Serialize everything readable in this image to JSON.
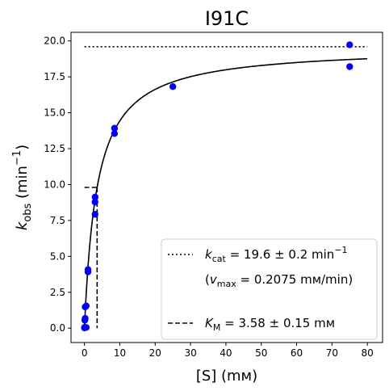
{
  "chart_data": {
    "type": "scatter",
    "title": "I91C",
    "xlabel": "[S] (mм)",
    "ylabel_main": "k",
    "ylabel_sub": "obs",
    "ylabel_unit_open": " (min",
    "ylabel_unit_exp": "−1",
    "ylabel_unit_close": ")",
    "xlim": [
      -3.8,
      84.3
    ],
    "ylim": [
      -1.0,
      20.6
    ],
    "xticks": [
      0,
      10,
      20,
      30,
      40,
      50,
      60,
      70,
      80
    ],
    "yticks": [
      0.0,
      2.5,
      5.0,
      7.5,
      10.0,
      12.5,
      15.0,
      17.5,
      20.0
    ],
    "ytick_labels": [
      "0.0",
      "2.5",
      "5.0",
      "7.5",
      "10.0",
      "12.5",
      "15.0",
      "17.5",
      "20.0"
    ],
    "points": {
      "color": "#0000ff",
      "x": [
        0.0,
        0.0,
        0.1,
        0.2,
        0.2,
        0.5,
        0.5,
        1.0,
        1.0,
        3.0,
        3.0,
        3.0,
        8.5,
        8.5,
        25.0,
        75.0,
        75.0
      ],
      "y": [
        0.02,
        0.05,
        0.55,
        0.68,
        1.48,
        1.55,
        0.05,
        3.92,
        4.08,
        7.93,
        8.78,
        9.13,
        13.55,
        13.92,
        16.82,
        18.21,
        19.73
      ]
    },
    "fit": {
      "kcat": 19.6,
      "KM": 3.58,
      "x_range": [
        0.0,
        80.0
      ],
      "color": "#000000"
    },
    "kcat_line": {
      "y": 19.6,
      "x_range": [
        0.0,
        80.0
      ],
      "style": "dotted"
    },
    "km_lines": {
      "x": 3.58,
      "y": 9.8,
      "style": "dashed"
    },
    "legend": {
      "placement": "lower-right",
      "entries": [
        {
          "style": "dotted",
          "sym": "k",
          "sub": "cat",
          "text": " = 19.6 ± 0.2 min",
          "sup": "−1"
        },
        {
          "style": "none",
          "text": "(",
          "sym": "v",
          "sub": "max",
          "text2": " = 0.2075 mм/min)"
        },
        {
          "style": "dashed",
          "sym": "K",
          "sub": "M",
          "text": " = 3.58 ± 0.15 mм"
        }
      ]
    }
  }
}
